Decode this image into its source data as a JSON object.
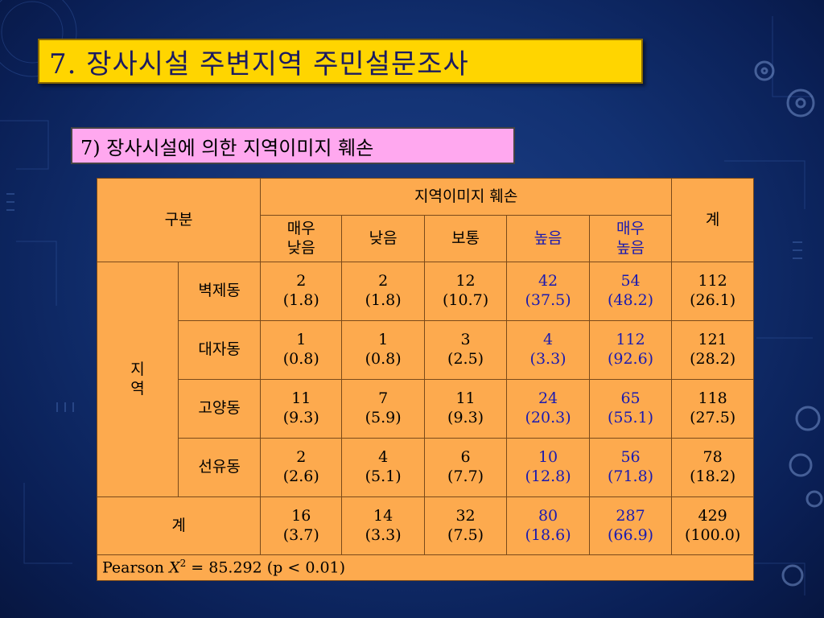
{
  "slide": {
    "title": "7. 장사시설 주변지역 주민설문조사",
    "subtitle": "7) 장사시설에 의한 지역이미지 훼손"
  },
  "table": {
    "group_header": "구분",
    "image_header": "지역이미지 훼손",
    "total_header": "계",
    "col_headers": [
      "매우 낮음",
      "낮음",
      "보통",
      "높음",
      "매우 높음"
    ],
    "region_label": "지 역",
    "rows": [
      {
        "name": "벽제동",
        "cells": [
          {
            "n": "2",
            "p": "(1.8)"
          },
          {
            "n": "2",
            "p": "(1.8)"
          },
          {
            "n": "12",
            "p": "(10.7)"
          },
          {
            "n": "42",
            "p": "(37.5)"
          },
          {
            "n": "54",
            "p": "(48.2)"
          },
          {
            "n": "112",
            "p": "(26.1)"
          }
        ]
      },
      {
        "name": "대자동",
        "cells": [
          {
            "n": "1",
            "p": "(0.8)"
          },
          {
            "n": "1",
            "p": "(0.8)"
          },
          {
            "n": "3",
            "p": "(2.5)"
          },
          {
            "n": "4",
            "p": "(3.3)"
          },
          {
            "n": "112",
            "p": "(92.6)"
          },
          {
            "n": "121",
            "p": "(28.2)"
          }
        ]
      },
      {
        "name": "고양동",
        "cells": [
          {
            "n": "11",
            "p": "(9.3)"
          },
          {
            "n": "7",
            "p": "(5.9)"
          },
          {
            "n": "11",
            "p": "(9.3)"
          },
          {
            "n": "24",
            "p": "(20.3)"
          },
          {
            "n": "65",
            "p": "(55.1)"
          },
          {
            "n": "118",
            "p": "(27.5)"
          }
        ]
      },
      {
        "name": "선유동",
        "cells": [
          {
            "n": "2",
            "p": "(2.6)"
          },
          {
            "n": "4",
            "p": "(5.1)"
          },
          {
            "n": "6",
            "p": "(7.7)"
          },
          {
            "n": "10",
            "p": "(12.8)"
          },
          {
            "n": "56",
            "p": "(71.8)"
          },
          {
            "n": "78",
            "p": "(18.2)"
          }
        ]
      }
    ],
    "total_row": {
      "name": "계",
      "cells": [
        {
          "n": "16",
          "p": "(3.7)"
        },
        {
          "n": "14",
          "p": "(3.3)"
        },
        {
          "n": "32",
          "p": "(7.5)"
        },
        {
          "n": "80",
          "p": "(18.6)"
        },
        {
          "n": "287",
          "p": "(66.9)"
        },
        {
          "n": "429",
          "p": "(100.0)"
        }
      ]
    },
    "footnote": {
      "prefix": "Pearson ",
      "symbol": "X",
      "sup": "2",
      "suffix": " = 85.292 (p < 0.01)"
    },
    "highlight_color": "#1a1ab0",
    "table_bg_color": "#fdaa4e"
  },
  "colors": {
    "title_bg": "#ffd500",
    "subtitle_bg": "#ffa8ef",
    "background": "#123172"
  }
}
